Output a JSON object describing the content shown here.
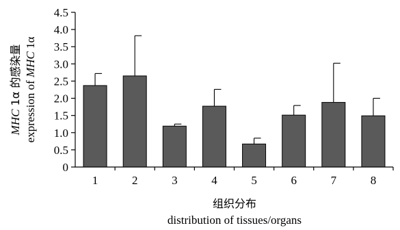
{
  "chart_data": {
    "type": "bar",
    "categories": [
      "1",
      "2",
      "3",
      "4",
      "5",
      "6",
      "7",
      "8"
    ],
    "values": [
      2.37,
      2.65,
      1.19,
      1.77,
      0.67,
      1.51,
      1.88,
      1.49
    ],
    "error_upper": [
      0.35,
      1.17,
      0.06,
      0.49,
      0.17,
      0.28,
      1.14,
      0.51
    ],
    "ylim": [
      0,
      4.5
    ],
    "yticks": [
      "0",
      "0.5",
      "1.0",
      "1.5",
      "2.0",
      "2.5",
      "3.0",
      "3.5",
      "4.0",
      "4.5"
    ],
    "xlabel_cn": "组织分布",
    "xlabel_en": "distribution of tissues/organs",
    "ylabel_cn_italic": "MHC",
    "ylabel_cn_rest": " 1α 的感染量",
    "ylabel_en_prefix": "expression of ",
    "ylabel_en_italic": "MHC",
    "ylabel_en_suffix": " 1α",
    "bar_color": "#5a5a5a",
    "grid": false
  }
}
